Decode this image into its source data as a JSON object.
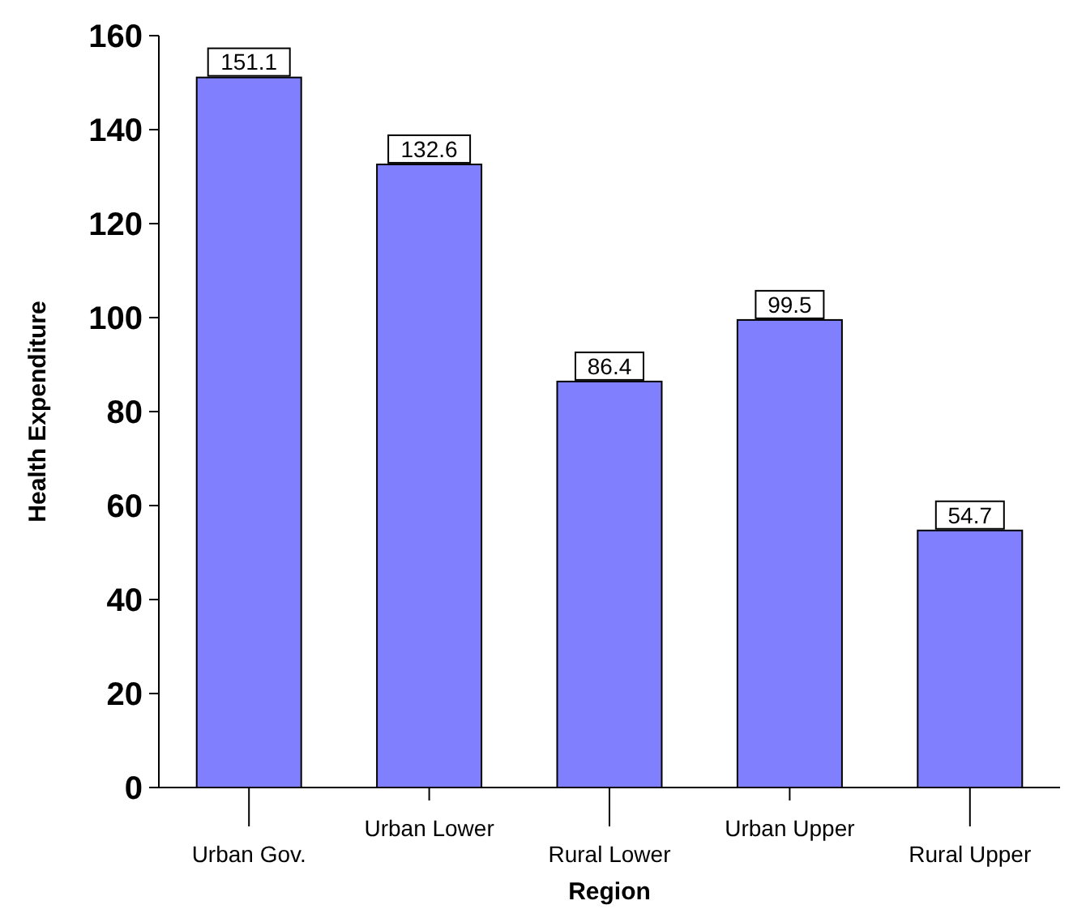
{
  "chart_data": {
    "type": "bar",
    "xlabel": "Region",
    "ylabel": "Health Expenditure",
    "categories": [
      "Urban Gov.",
      "Urban Lower",
      "Rural Lower",
      "Urban Upper",
      "Rural Upper"
    ],
    "values": [
      151.1,
      132.6,
      86.4,
      99.5,
      54.7
    ],
    "color": "#8080ff",
    "ylim": [
      0,
      160
    ],
    "yticks": [
      0,
      20,
      40,
      60,
      80,
      100,
      120,
      140,
      160
    ],
    "data_labels": true,
    "grid": false
  }
}
